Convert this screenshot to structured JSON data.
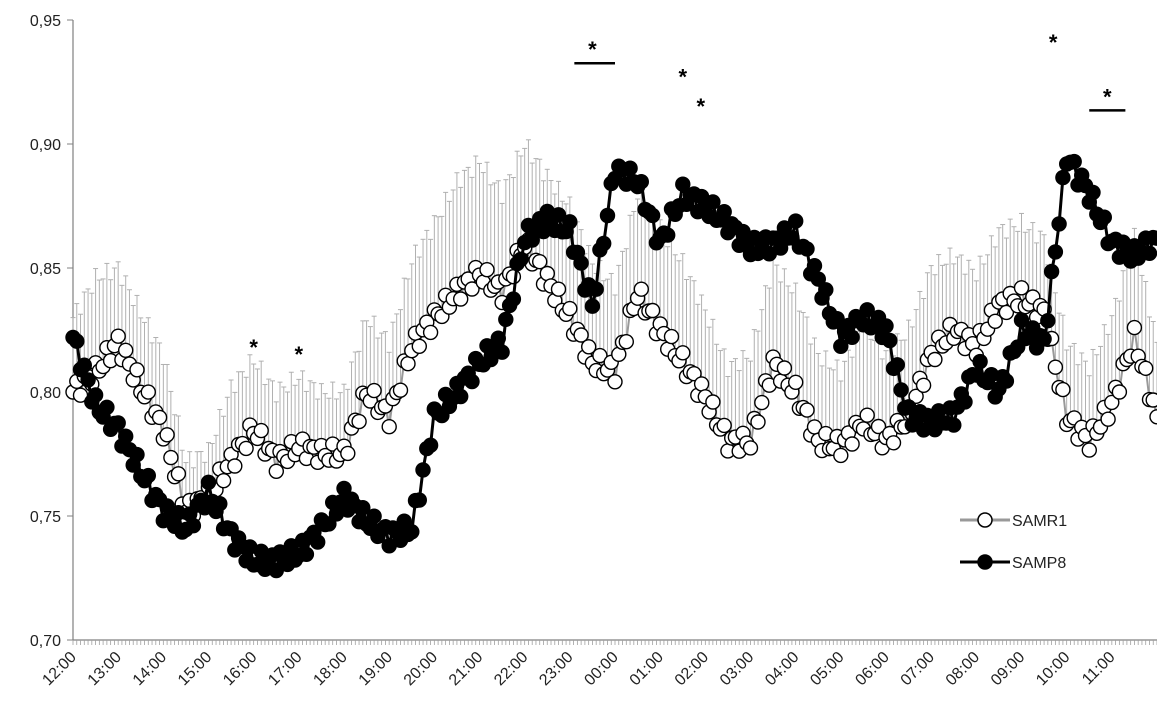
{
  "chart_data": {
    "type": "line",
    "title": "",
    "xlabel": "",
    "ylabel": "",
    "ylim": [
      0.7,
      0.95
    ],
    "y_ticks": [
      "0,70",
      "0,75",
      "0,80",
      "0,85",
      "0,90",
      "0,95"
    ],
    "y_tick_values": [
      0.7,
      0.75,
      0.8,
      0.85,
      0.9,
      0.95
    ],
    "x_hours": 24,
    "x_tick_labels": [
      "12:00",
      "13:00",
      "14:00",
      "15:00",
      "16:00",
      "17:00",
      "18:00",
      "19:00",
      "20:00",
      "21:00",
      "22:00",
      "23:00",
      "00:00",
      "01:00",
      "02:00",
      "03:00",
      "04:00",
      "05:00",
      "06:00",
      "07:00",
      "08:00",
      "09:00",
      "10:00",
      "11:00"
    ],
    "grid": false,
    "legend_position": "bottom-right",
    "series": [
      {
        "name": "SAMR1",
        "marker": "open-circle",
        "line_color": "#999999",
        "x": [
          0,
          0.5,
          1,
          1.5,
          2,
          2.5,
          3,
          3.5,
          4,
          4.5,
          5,
          5.5,
          6,
          6.5,
          7,
          7.5,
          8,
          8.5,
          9,
          9.5,
          10,
          10.5,
          11,
          11.5,
          12,
          12.5,
          13,
          13.5,
          14,
          14.5,
          15,
          15.5,
          16,
          16.5,
          17,
          17.5,
          18,
          18.5,
          19,
          19.5,
          20,
          20.5,
          21,
          21.5,
          22,
          22.5,
          23,
          23.5,
          24
        ],
        "values": [
          0.8,
          0.808,
          0.82,
          0.802,
          0.785,
          0.752,
          0.758,
          0.772,
          0.785,
          0.772,
          0.778,
          0.775,
          0.775,
          0.8,
          0.79,
          0.818,
          0.83,
          0.84,
          0.848,
          0.84,
          0.86,
          0.845,
          0.83,
          0.812,
          0.808,
          0.84,
          0.825,
          0.812,
          0.798,
          0.78,
          0.78,
          0.812,
          0.8,
          0.78,
          0.778,
          0.788,
          0.78,
          0.79,
          0.815,
          0.825,
          0.818,
          0.835,
          0.838,
          0.832,
          0.79,
          0.78,
          0.795,
          0.822,
          0.79
        ],
        "errors": [
          0.03,
          0.038,
          0.03,
          0.03,
          0.03,
          0.02,
          0.018,
          0.03,
          0.028,
          0.028,
          0.028,
          0.025,
          0.025,
          0.03,
          0.03,
          0.035,
          0.038,
          0.045,
          0.045,
          0.04,
          0.04,
          0.042,
          0.045,
          0.04,
          0.035,
          0.04,
          0.042,
          0.04,
          0.035,
          0.03,
          0.035,
          0.04,
          0.04,
          0.035,
          0.03,
          0.04,
          0.035,
          0.035,
          0.035,
          0.03,
          0.03,
          0.03,
          0.03,
          0.03,
          0.03,
          0.03,
          0.035,
          0.04,
          0.03
        ]
      },
      {
        "name": "SAMP8",
        "marker": "filled-circle",
        "line_color": "#000000",
        "x": [
          0,
          0.5,
          1,
          1.5,
          2,
          2.5,
          3,
          3.5,
          4,
          4.5,
          5,
          5.5,
          6,
          6.5,
          7,
          7.5,
          8,
          8.5,
          9,
          9.5,
          10,
          10.5,
          11,
          11.5,
          12,
          12.5,
          13,
          13.5,
          14,
          14.5,
          15,
          15.5,
          16,
          16.5,
          17,
          17.5,
          18,
          18.5,
          19,
          19.5,
          20,
          20.5,
          21,
          21.5,
          22,
          22.5,
          23,
          23.5,
          24
        ],
        "values": [
          0.822,
          0.795,
          0.785,
          0.768,
          0.752,
          0.745,
          0.76,
          0.742,
          0.732,
          0.732,
          0.735,
          0.745,
          0.758,
          0.748,
          0.742,
          0.745,
          0.79,
          0.8,
          0.812,
          0.82,
          0.862,
          0.87,
          0.865,
          0.835,
          0.89,
          0.885,
          0.86,
          0.88,
          0.875,
          0.868,
          0.858,
          0.86,
          0.865,
          0.845,
          0.822,
          0.83,
          0.825,
          0.79,
          0.788,
          0.79,
          0.81,
          0.8,
          0.825,
          0.82,
          0.895,
          0.88,
          0.86,
          0.855,
          0.862
        ]
      }
    ],
    "annotations": [
      "*",
      "*",
      "*",
      "*",
      "*",
      "*",
      "*"
    ]
  }
}
